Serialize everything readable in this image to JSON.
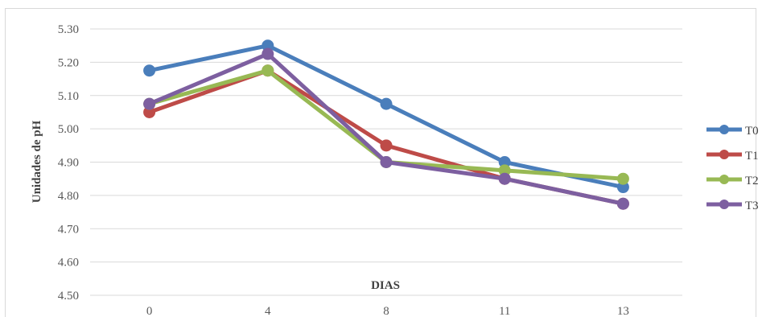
{
  "chart_data": {
    "type": "line",
    "categories": [
      "0",
      "4",
      "8",
      "11",
      "13"
    ],
    "series": [
      {
        "name": "T0",
        "color": "#4a7ebb",
        "values": [
          5.175,
          5.25,
          5.075,
          4.9,
          4.825
        ]
      },
      {
        "name": "T1",
        "color": "#be4b48",
        "values": [
          5.05,
          5.175,
          4.95,
          4.85,
          4.775
        ]
      },
      {
        "name": "T2",
        "color": "#98b954",
        "values": [
          5.075,
          5.175,
          4.9,
          4.875,
          4.85
        ]
      },
      {
        "name": "T3",
        "color": "#7d5fa0",
        "values": [
          5.075,
          5.225,
          4.9,
          4.85,
          4.775
        ]
      }
    ],
    "xlabel": "DIAS",
    "ylabel": "Unidades de pH",
    "ylim": [
      4.5,
      5.3
    ],
    "yticks": [
      "4.50",
      "4.60",
      "4.70",
      "4.80",
      "4.90",
      "5.00",
      "5.10",
      "5.20",
      "5.30"
    ],
    "grid": true,
    "legend_position": "right"
  }
}
